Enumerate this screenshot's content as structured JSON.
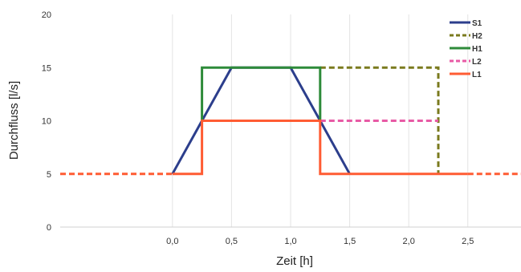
{
  "chart_data": {
    "type": "line",
    "title": "",
    "xlabel": "Zeit [h]",
    "ylabel": "Durchfluss [l/s]",
    "xlim": [
      -0.95,
      2.95
    ],
    "ylim": [
      0,
      20
    ],
    "x_ticks": [
      {
        "value": 0.0,
        "label": "0,0"
      },
      {
        "value": 0.5,
        "label": "0,5"
      },
      {
        "value": 1.0,
        "label": "1,0"
      },
      {
        "value": 1.5,
        "label": "1,5"
      },
      {
        "value": 2.0,
        "label": "2,0"
      },
      {
        "value": 2.5,
        "label": "2,5"
      }
    ],
    "y_ticks": [
      {
        "value": 0,
        "label": "0"
      },
      {
        "value": 5,
        "label": "5"
      },
      {
        "value": 10,
        "label": "10"
      },
      {
        "value": 15,
        "label": "15"
      },
      {
        "value": 20,
        "label": "20"
      }
    ],
    "grid": {
      "x": true,
      "y": false
    },
    "legend_position": "top-right",
    "series": [
      {
        "name": "S1",
        "color": "#2c3e8c",
        "dash": "solid",
        "points": [
          [
            0.0,
            5
          ],
          [
            0.25,
            10
          ],
          [
            0.5,
            15
          ],
          [
            1.0,
            15
          ],
          [
            1.25,
            10
          ],
          [
            1.5,
            5
          ]
        ]
      },
      {
        "name": "H2",
        "color": "#7a7a1e",
        "dash": "dashed",
        "points": [
          [
            1.25,
            15
          ],
          [
            2.25,
            15
          ],
          [
            2.25,
            5
          ]
        ]
      },
      {
        "name": "H1",
        "color": "#2e8b3a",
        "dash": "solid",
        "points": [
          [
            0.25,
            10
          ],
          [
            0.25,
            15
          ],
          [
            1.25,
            15
          ],
          [
            1.25,
            10
          ]
        ]
      },
      {
        "name": "L2",
        "color": "#e85aa5",
        "dash": "dashed",
        "points": [
          [
            1.25,
            10
          ],
          [
            2.25,
            10
          ]
        ]
      },
      {
        "name": "L1",
        "color": "#ff5c33",
        "dash": "solid",
        "points": [
          [
            0.0,
            5
          ],
          [
            0.25,
            5
          ],
          [
            0.25,
            10
          ],
          [
            1.25,
            10
          ],
          [
            1.25,
            5
          ],
          [
            2.5,
            5
          ]
        ]
      },
      {
        "name": "",
        "color": "#ff5c33",
        "dash": "dashed",
        "points": [
          [
            -0.95,
            5
          ],
          [
            0.0,
            5
          ]
        ]
      },
      {
        "name": "",
        "color": "#ff5c33",
        "dash": "dashed",
        "points": [
          [
            2.5,
            5
          ],
          [
            2.95,
            5
          ]
        ]
      }
    ]
  }
}
